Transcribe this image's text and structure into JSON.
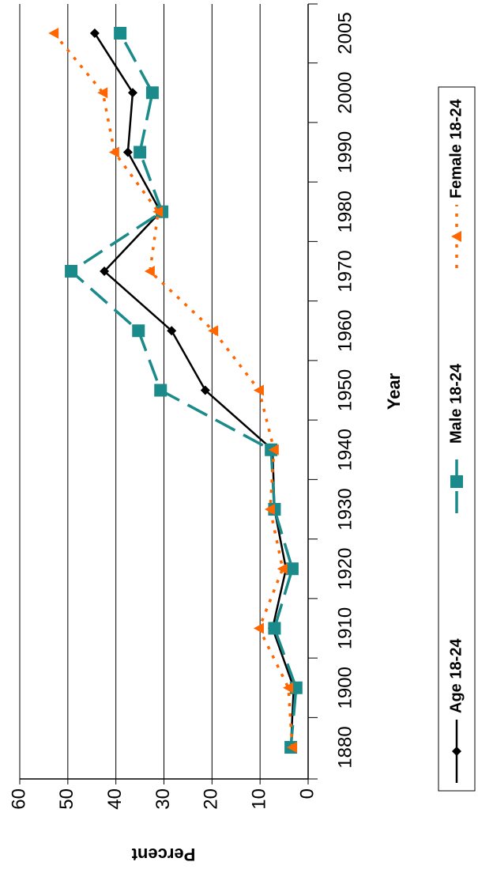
{
  "chart_data": {
    "type": "line",
    "x_label": "Year",
    "y_label": "Percent",
    "categories": [
      "1880",
      "1900",
      "1910",
      "1920",
      "1930",
      "1940",
      "1950",
      "1960",
      "1970",
      "1980",
      "1990",
      "2000",
      "2005"
    ],
    "series": [
      {
        "name": "Age 18-24",
        "color": "#000000",
        "values": [
          3.6,
          3,
          7.4,
          4.6,
          7,
          7.4,
          21.4,
          28.4,
          42.4,
          30.7,
          37.5,
          36.5,
          44.4
        ]
      },
      {
        "name": "Male 18-24",
        "color": "#1a8a8a",
        "values": [
          3.6,
          2.5,
          7,
          3.3,
          7,
          7.7,
          30.7,
          35.3,
          49.3,
          30.4,
          35,
          32.4,
          39.1
        ]
      },
      {
        "name": "Female 18-24",
        "color": "#ff6600",
        "values": [
          3.3,
          4.1,
          10.2,
          5.3,
          7.9,
          7.1,
          10.2,
          19.7,
          32.9,
          31.2,
          40.3,
          42.7,
          52.9
        ]
      }
    ],
    "ylim": [
      0,
      60
    ],
    "yticks": [
      0,
      10,
      20,
      30,
      40,
      50,
      60
    ],
    "grid": true,
    "legend": "bottom"
  }
}
